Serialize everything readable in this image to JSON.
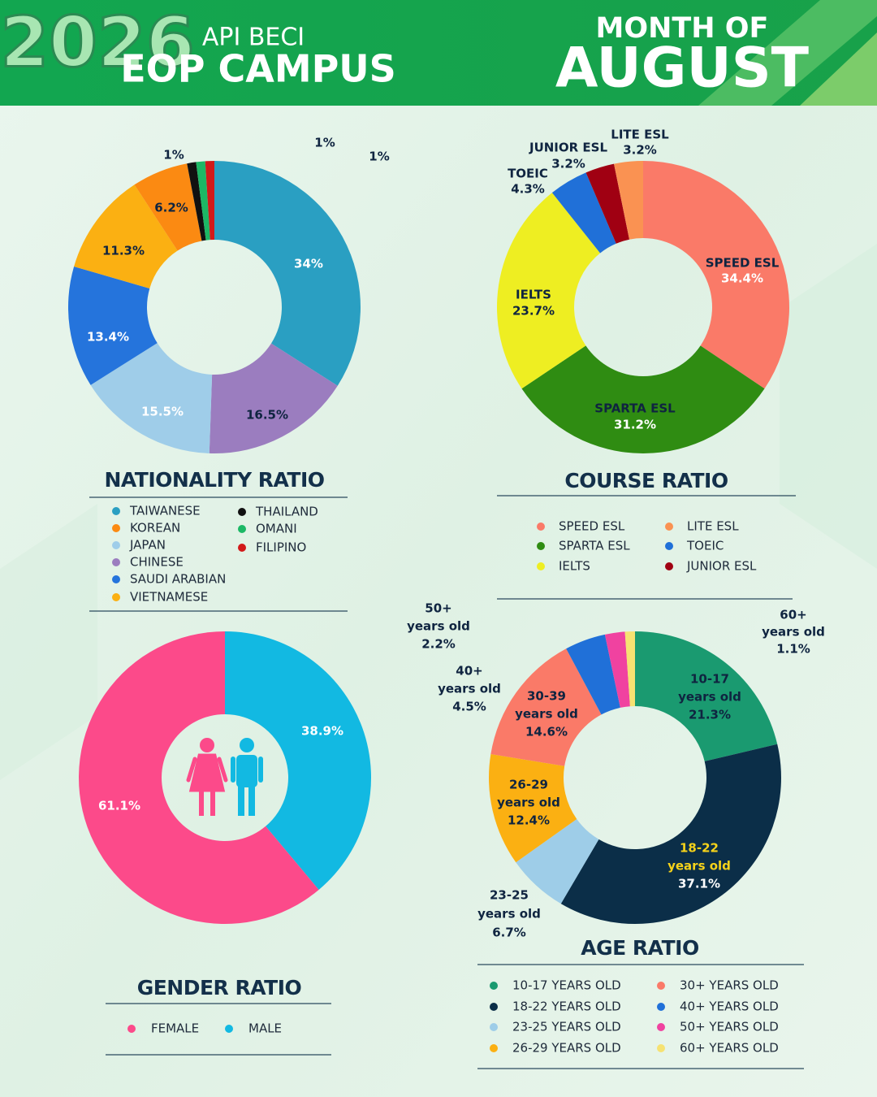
{
  "header": {
    "year": "2026",
    "campus_line1": "API BECI",
    "campus_line2": "EOP CAMPUS",
    "month_prefix": "MONTH OF",
    "month": "AUGUST"
  },
  "chart_data": [
    {
      "type": "donut",
      "title": "NATIONALITY RATIO",
      "categories": [
        "TAIWANESE",
        "CHINESE",
        "JAPAN",
        "SAUDI ARABIAN",
        "VIETNAMESE",
        "KOREAN",
        "THAILAND",
        "OMANI",
        "FILIPINO"
      ],
      "values": [
        34,
        16.5,
        15.5,
        13.4,
        11.3,
        6.2,
        1,
        1,
        1
      ],
      "value_labels": [
        "34%",
        "16.5%",
        "15.5%",
        "13.4%",
        "11.3%",
        "6.2%",
        "1%",
        "1%",
        "1%"
      ],
      "colors": [
        "#2a9fc2",
        "#9b7dbf",
        "#9fcde9",
        "#2574dc",
        "#fbb012",
        "#fb8a12",
        "#111111",
        "#1cb865",
        "#d21a1a"
      ]
    },
    {
      "type": "donut",
      "title": "COURSE RATIO",
      "categories": [
        "SPEED ESL",
        "SPARTA ESL",
        "IELTS",
        "TOEIC",
        "JUNIOR ESL",
        "LITE ESL"
      ],
      "values": [
        34.4,
        31.2,
        23.7,
        4.3,
        3.2,
        3.2
      ],
      "value_labels": [
        "34.4%",
        "31.2%",
        "23.7%",
        "4.3%",
        "3.2%",
        "3.2%"
      ],
      "colors": [
        "#fa7a68",
        "#2f8c12",
        "#eeee22",
        "#2070d8",
        "#a00012",
        "#fa9252"
      ]
    },
    {
      "type": "donut",
      "title": "GENDER RATIO",
      "categories": [
        "FEMALE",
        "MALE"
      ],
      "values": [
        61.1,
        38.9
      ],
      "value_labels": [
        "61.1%",
        "38.9%"
      ],
      "colors": [
        "#fc4a8a",
        "#12b9e2"
      ]
    },
    {
      "type": "donut",
      "title": "AGE RATIO",
      "categories": [
        "10-17 YEARS OLD",
        "18-22 YEARS OLD",
        "23-25 YEARS OLD",
        "26-29 YEARS OLD",
        "30+ YEARS OLD",
        "40+ YEARS OLD",
        "50+ YEARS OLD",
        "60+ YEARS OLD"
      ],
      "slice_labels": [
        [
          "10-17",
          "years old"
        ],
        [
          "18-22",
          "years old"
        ],
        [
          "23-25",
          "years old"
        ],
        [
          "26-29",
          "years old"
        ],
        [
          "30-39",
          "years old"
        ],
        [
          "40+",
          "years old"
        ],
        [
          "50+",
          "years old"
        ],
        [
          "60+",
          "years old"
        ]
      ],
      "values": [
        21.3,
        37.1,
        6.7,
        12.4,
        14.6,
        4.5,
        2.2,
        1.1
      ],
      "value_labels": [
        "21.3%",
        "37.1%",
        "6.7%",
        "12.4%",
        "14.6%",
        "4.5%",
        "2.2%",
        "1.1%"
      ],
      "colors": [
        "#1a9a70",
        "#0b2e48",
        "#9ecde8",
        "#fbb012",
        "#fa7a68",
        "#2070d8",
        "#f042a0",
        "#f6e272"
      ]
    }
  ]
}
